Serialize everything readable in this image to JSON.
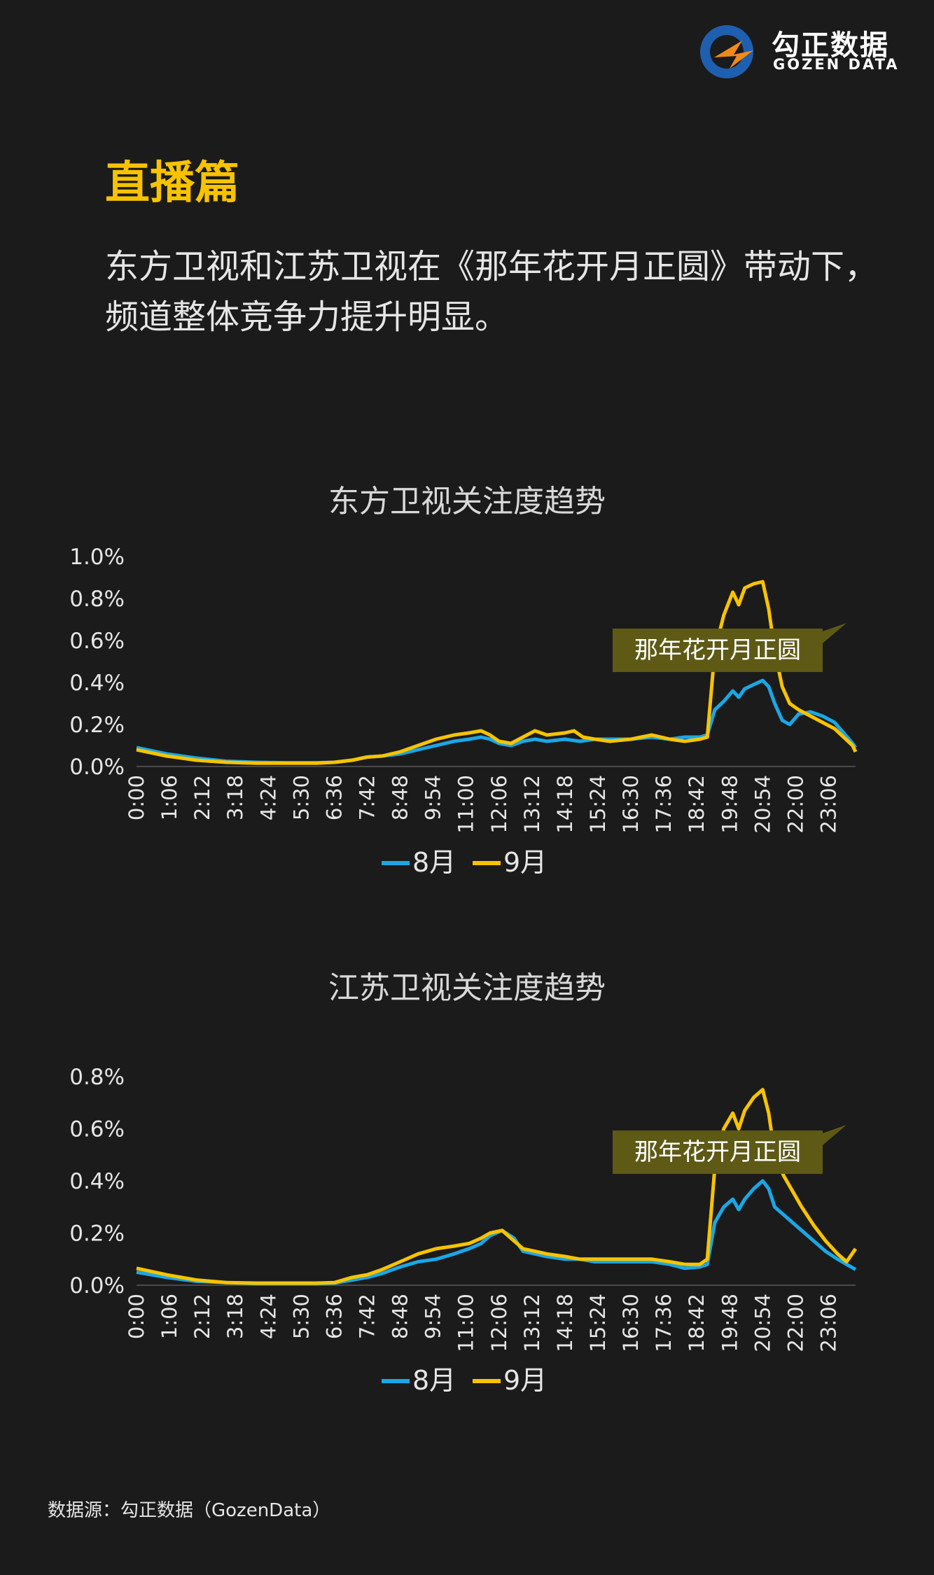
{
  "logo": {
    "text_cn": "勾正数据",
    "text_en": "GOZEN DATA"
  },
  "section_title": "直播篇",
  "intro": "东方卫视和江苏卫视在《那年花开月正圆》带动下，频道整体竞争力提升明显。",
  "source": "数据源：勾正数据（GozenData）",
  "colors": {
    "aug": "#1aa7e6",
    "sep": "#f7c300",
    "accent": "#f7c300",
    "callout_bg": "#5e5a16"
  },
  "chart_data": [
    {
      "type": "line",
      "title": "东方卫视关注度趋势",
      "x_ticks": [
        "0:00",
        "1:06",
        "2:12",
        "3:18",
        "4:24",
        "5:30",
        "6:36",
        "7:42",
        "8:48",
        "9:54",
        "11:00",
        "12:06",
        "13:12",
        "14:18",
        "15:24",
        "16:30",
        "17:36",
        "18:42",
        "19:48",
        "20:54",
        "22:00",
        "23:06"
      ],
      "y_ticks": [
        "0.0%",
        "0.2%",
        "0.4%",
        "0.6%",
        "0.8%",
        "1.0%"
      ],
      "ylim": [
        0,
        1.0
      ],
      "xlim": [
        0,
        24
      ],
      "annotation": "那年花开月正圆",
      "series": [
        {
          "name": "8月",
          "color": "#1aa7e6",
          "points": [
            [
              0,
              0.09
            ],
            [
              1,
              0.06
            ],
            [
              2,
              0.04
            ],
            [
              3,
              0.025
            ],
            [
              4,
              0.02
            ],
            [
              5,
              0.018
            ],
            [
              6,
              0.018
            ],
            [
              6.6,
              0.02
            ],
            [
              7.2,
              0.03
            ],
            [
              7.7,
              0.045
            ],
            [
              8.2,
              0.05
            ],
            [
              8.8,
              0.06
            ],
            [
              9.4,
              0.08
            ],
            [
              10,
              0.1
            ],
            [
              10.6,
              0.12
            ],
            [
              11.1,
              0.13
            ],
            [
              11.5,
              0.14
            ],
            [
              11.8,
              0.13
            ],
            [
              12.1,
              0.11
            ],
            [
              12.5,
              0.1
            ],
            [
              12.9,
              0.12
            ],
            [
              13.3,
              0.13
            ],
            [
              13.7,
              0.12
            ],
            [
              14.3,
              0.13
            ],
            [
              14.8,
              0.12
            ],
            [
              15.3,
              0.13
            ],
            [
              15.8,
              0.13
            ],
            [
              16.5,
              0.13
            ],
            [
              17.2,
              0.14
            ],
            [
              17.8,
              0.13
            ],
            [
              18.3,
              0.14
            ],
            [
              18.8,
              0.14
            ],
            [
              19.05,
              0.15
            ],
            [
              19.3,
              0.27
            ],
            [
              19.6,
              0.31
            ],
            [
              19.9,
              0.36
            ],
            [
              20.1,
              0.33
            ],
            [
              20.3,
              0.37
            ],
            [
              20.6,
              0.39
            ],
            [
              20.9,
              0.41
            ],
            [
              21.1,
              0.38
            ],
            [
              21.3,
              0.3
            ],
            [
              21.55,
              0.22
            ],
            [
              21.8,
              0.2
            ],
            [
              22.1,
              0.25
            ],
            [
              22.5,
              0.26
            ],
            [
              22.9,
              0.24
            ],
            [
              23.3,
              0.21
            ],
            [
              23.6,
              0.16
            ],
            [
              23.9,
              0.11
            ],
            [
              24,
              0.09
            ]
          ]
        },
        {
          "name": "9月",
          "color": "#f7c300",
          "points": [
            [
              0,
              0.08
            ],
            [
              1,
              0.05
            ],
            [
              2,
              0.03
            ],
            [
              3,
              0.02
            ],
            [
              4,
              0.016
            ],
            [
              5,
              0.016
            ],
            [
              6,
              0.016
            ],
            [
              6.6,
              0.02
            ],
            [
              7.2,
              0.03
            ],
            [
              7.7,
              0.045
            ],
            [
              8.2,
              0.05
            ],
            [
              8.8,
              0.07
            ],
            [
              9.4,
              0.1
            ],
            [
              10,
              0.13
            ],
            [
              10.6,
              0.15
            ],
            [
              11.1,
              0.16
            ],
            [
              11.5,
              0.17
            ],
            [
              11.8,
              0.15
            ],
            [
              12.1,
              0.12
            ],
            [
              12.5,
              0.11
            ],
            [
              12.9,
              0.14
            ],
            [
              13.3,
              0.17
            ],
            [
              13.7,
              0.15
            ],
            [
              14.3,
              0.16
            ],
            [
              14.6,
              0.17
            ],
            [
              14.9,
              0.14
            ],
            [
              15.3,
              0.13
            ],
            [
              15.8,
              0.12
            ],
            [
              16.5,
              0.13
            ],
            [
              17.2,
              0.15
            ],
            [
              17.8,
              0.13
            ],
            [
              18.3,
              0.12
            ],
            [
              18.8,
              0.13
            ],
            [
              19.05,
              0.14
            ],
            [
              19.3,
              0.55
            ],
            [
              19.6,
              0.72
            ],
            [
              19.9,
              0.83
            ],
            [
              20.1,
              0.77
            ],
            [
              20.3,
              0.85
            ],
            [
              20.6,
              0.87
            ],
            [
              20.9,
              0.88
            ],
            [
              21.1,
              0.75
            ],
            [
              21.3,
              0.55
            ],
            [
              21.55,
              0.38
            ],
            [
              21.8,
              0.3
            ],
            [
              22.1,
              0.27
            ],
            [
              22.5,
              0.24
            ],
            [
              22.9,
              0.21
            ],
            [
              23.3,
              0.18
            ],
            [
              23.6,
              0.14
            ],
            [
              23.9,
              0.1
            ],
            [
              24,
              0.07
            ]
          ]
        }
      ]
    },
    {
      "type": "line",
      "title": "江苏卫视关注度趋势",
      "x_ticks": [
        "0:00",
        "1:06",
        "2:12",
        "3:18",
        "4:24",
        "5:30",
        "6:36",
        "7:42",
        "8:48",
        "9:54",
        "11:00",
        "12:06",
        "13:12",
        "14:18",
        "15:24",
        "16:30",
        "17:36",
        "18:42",
        "19:48",
        "20:54",
        "22:00",
        "23:06"
      ],
      "y_ticks": [
        "0.0%",
        "0.2%",
        "0.4%",
        "0.6%",
        "0.8%"
      ],
      "ylim": [
        0,
        0.8
      ],
      "xlim": [
        0,
        24
      ],
      "annotation": "那年花开月正圆",
      "series": [
        {
          "name": "8月",
          "color": "#1aa7e6",
          "points": [
            [
              0,
              0.05
            ],
            [
              1,
              0.03
            ],
            [
              2,
              0.015
            ],
            [
              3,
              0.01
            ],
            [
              4,
              0.006
            ],
            [
              5,
              0.006
            ],
            [
              6,
              0.006
            ],
            [
              6.6,
              0.008
            ],
            [
              7.2,
              0.02
            ],
            [
              7.7,
              0.03
            ],
            [
              8.2,
              0.045
            ],
            [
              8.8,
              0.07
            ],
            [
              9.4,
              0.09
            ],
            [
              10,
              0.1
            ],
            [
              10.6,
              0.12
            ],
            [
              11.1,
              0.14
            ],
            [
              11.5,
              0.16
            ],
            [
              11.8,
              0.19
            ],
            [
              12.2,
              0.21
            ],
            [
              12.6,
              0.18
            ],
            [
              12.9,
              0.13
            ],
            [
              13.3,
              0.12
            ],
            [
              13.7,
              0.11
            ],
            [
              14.3,
              0.1
            ],
            [
              14.8,
              0.1
            ],
            [
              15.3,
              0.09
            ],
            [
              15.8,
              0.09
            ],
            [
              16.5,
              0.09
            ],
            [
              17.2,
              0.09
            ],
            [
              17.8,
              0.08
            ],
            [
              18.3,
              0.065
            ],
            [
              18.8,
              0.07
            ],
            [
              19.05,
              0.08
            ],
            [
              19.3,
              0.24
            ],
            [
              19.6,
              0.3
            ],
            [
              19.9,
              0.33
            ],
            [
              20.1,
              0.29
            ],
            [
              20.3,
              0.33
            ],
            [
              20.6,
              0.37
            ],
            [
              20.9,
              0.4
            ],
            [
              21.1,
              0.37
            ],
            [
              21.3,
              0.3
            ],
            [
              21.6,
              0.27
            ],
            [
              21.9,
              0.24
            ],
            [
              22.2,
              0.21
            ],
            [
              22.6,
              0.17
            ],
            [
              23,
              0.13
            ],
            [
              23.4,
              0.1
            ],
            [
              23.7,
              0.08
            ],
            [
              24,
              0.06
            ]
          ]
        },
        {
          "name": "9月",
          "color": "#f7c300",
          "points": [
            [
              0,
              0.065
            ],
            [
              1,
              0.04
            ],
            [
              2,
              0.02
            ],
            [
              3,
              0.01
            ],
            [
              4,
              0.008
            ],
            [
              5,
              0.008
            ],
            [
              6,
              0.008
            ],
            [
              6.6,
              0.01
            ],
            [
              7.2,
              0.03
            ],
            [
              7.7,
              0.04
            ],
            [
              8.2,
              0.06
            ],
            [
              8.8,
              0.09
            ],
            [
              9.4,
              0.12
            ],
            [
              10,
              0.14
            ],
            [
              10.6,
              0.15
            ],
            [
              11.1,
              0.16
            ],
            [
              11.5,
              0.18
            ],
            [
              11.8,
              0.2
            ],
            [
              12.2,
              0.21
            ],
            [
              12.6,
              0.17
            ],
            [
              12.9,
              0.14
            ],
            [
              13.3,
              0.13
            ],
            [
              13.7,
              0.12
            ],
            [
              14.3,
              0.11
            ],
            [
              14.8,
              0.1
            ],
            [
              15.3,
              0.1
            ],
            [
              15.8,
              0.1
            ],
            [
              16.5,
              0.1
            ],
            [
              17.2,
              0.1
            ],
            [
              17.8,
              0.09
            ],
            [
              18.3,
              0.08
            ],
            [
              18.8,
              0.08
            ],
            [
              19.05,
              0.1
            ],
            [
              19.3,
              0.45
            ],
            [
              19.6,
              0.6
            ],
            [
              19.9,
              0.66
            ],
            [
              20.1,
              0.6
            ],
            [
              20.3,
              0.67
            ],
            [
              20.6,
              0.72
            ],
            [
              20.9,
              0.75
            ],
            [
              21.1,
              0.66
            ],
            [
              21.3,
              0.5
            ],
            [
              21.6,
              0.42
            ],
            [
              21.9,
              0.36
            ],
            [
              22.2,
              0.3
            ],
            [
              22.6,
              0.23
            ],
            [
              23,
              0.17
            ],
            [
              23.4,
              0.12
            ],
            [
              23.7,
              0.09
            ],
            [
              24,
              0.14
            ]
          ]
        }
      ]
    }
  ]
}
